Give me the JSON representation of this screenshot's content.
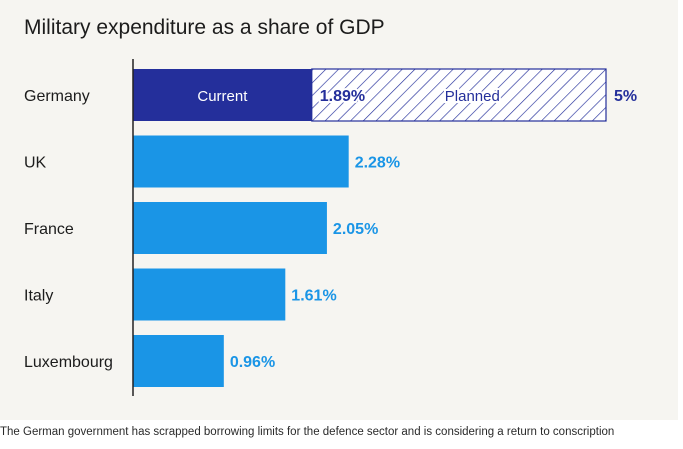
{
  "chart_data": {
    "type": "bar",
    "orientation": "horizontal",
    "title": "Military expenditure as a share of GDP",
    "categories": [
      "Germany",
      "UK",
      "France",
      "Italy",
      "Luxembourg"
    ],
    "values": [
      1.89,
      2.28,
      2.05,
      1.61,
      0.96
    ],
    "value_labels": [
      "1.89%",
      "2.28%",
      "2.05%",
      "1.61%",
      "0.96%"
    ],
    "planned": {
      "category": "Germany",
      "value": 5,
      "label": "5%"
    },
    "segment_labels": {
      "current": "Current",
      "planned": "Planned"
    },
    "xlim": [
      0,
      5.2
    ],
    "colors": {
      "bar": "#1a95e6",
      "current": "#242f9b",
      "planned": "#242f9b",
      "value_text": "#1a95e6",
      "axis": "#222222"
    }
  },
  "caption": "The German government has scrapped borrowing limits for the defence sector and is considering a return to conscription"
}
